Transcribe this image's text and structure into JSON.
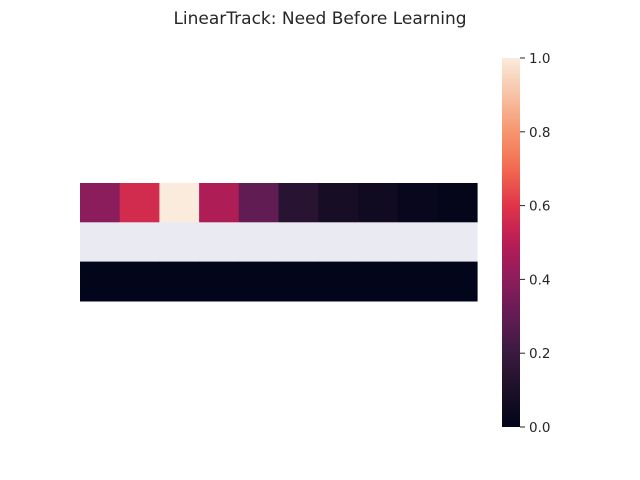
{
  "chart_data": {
    "type": "heatmap",
    "title": "LinearTrack: Need Before Learning",
    "xlabel": "",
    "ylabel": "",
    "rows": 3,
    "cols": 10,
    "values": [
      [
        0.4,
        0.56,
        1.0,
        0.48,
        0.3,
        0.14,
        0.08,
        0.05,
        0.02,
        0.01
      ],
      [
        null,
        null,
        null,
        null,
        null,
        null,
        null,
        null,
        null,
        null
      ],
      [
        0.0,
        0.0,
        0.0,
        0.0,
        0.0,
        0.0,
        0.0,
        0.0,
        0.0,
        0.0
      ]
    ],
    "missing_color": "#eaeaf2",
    "vmin": 0.0,
    "vmax": 1.0,
    "colormap": "rocket",
    "colorbar": {
      "ticks": [
        "0.0",
        "0.2",
        "0.4",
        "0.6",
        "0.8",
        "1.0"
      ],
      "tick_values": [
        0.0,
        0.2,
        0.4,
        0.6,
        0.8,
        1.0
      ]
    },
    "grid": false,
    "show_axis_ticks": false
  }
}
